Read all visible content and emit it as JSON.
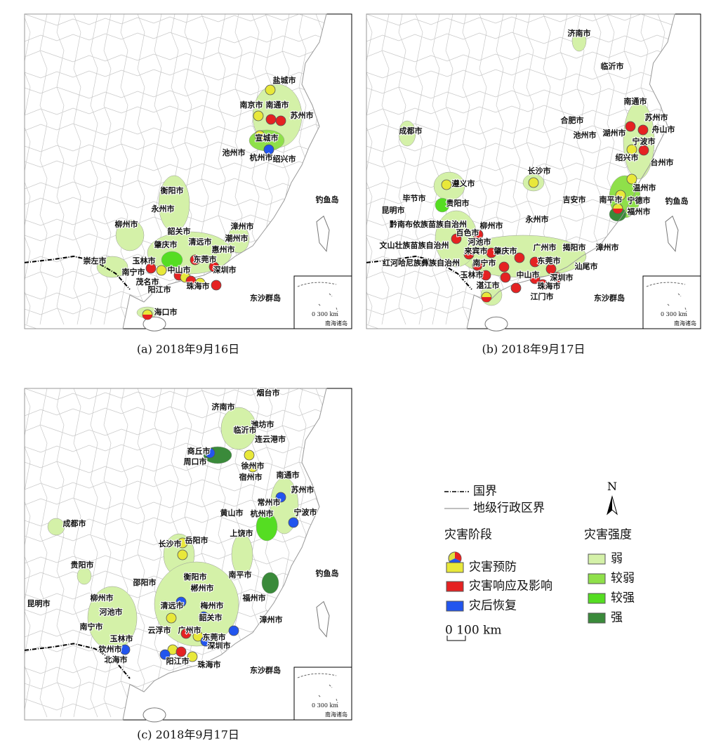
{
  "panels": [
    {
      "caption": "(a) 2018年9月16日",
      "scale": "0 300 km",
      "inset_label": "南海诸岛",
      "labels": [
        "盐城市",
        "南京市",
        "南通市",
        "苏州市",
        "宣城市",
        "池州市",
        "杭州市",
        "绍兴市",
        "衡阳市",
        "永州市",
        "柳州市",
        "韶关市",
        "肇庆市",
        "清远市",
        "漳州市",
        "潮州市",
        "惠州市",
        "东莞市",
        "崇左市",
        "玉林市",
        "南宁市",
        "中山市",
        "深圳市",
        "茂名市",
        "阳江市",
        "珠海市",
        "海口市",
        "钓鱼岛",
        "东沙群岛"
      ]
    },
    {
      "caption": "(b) 2018年9月17日",
      "scale": "0 300 km",
      "inset_label": "南海诸岛",
      "labels": [
        "济南市",
        "临沂市",
        "南通市",
        "苏州市",
        "舟山市",
        "合肥市",
        "湖州市",
        "池州市",
        "宁波市",
        "成都市",
        "绍兴市",
        "台州市",
        "长沙市",
        "遵义市",
        "温州市",
        "毕节市",
        "贵阳市",
        "吉安市",
        "南平市",
        "宁德市",
        "福州市",
        "钓鱼岛",
        "昆明市",
        "黔南布依族苗族自治州",
        "百色市",
        "柳州市",
        "永州市",
        "河池市",
        "文山壮族苗族自治州",
        "来宾市",
        "肇庆市",
        "广州市",
        "揭阳市",
        "漳州市",
        "红河哈尼族彝族自治州",
        "南宁市",
        "东莞市",
        "汕尾市",
        "玉林市",
        "中山市",
        "深圳市",
        "湛江市",
        "珠海市",
        "江门市",
        "东沙群岛"
      ]
    },
    {
      "caption": "(c) 2018年9月17日",
      "scale": "0 300 km",
      "inset_label": "南海诸岛",
      "labels": [
        "烟台市",
        "济南市",
        "潍坊市",
        "临沂市",
        "连云港市",
        "商丘市",
        "周口市",
        "徐州市",
        "宿州市",
        "南通市",
        "苏州市",
        "常州市",
        "宁波市",
        "成都市",
        "黄山市",
        "杭州市",
        "长沙市",
        "岳阳市",
        "上饶市",
        "钓鱼岛",
        "贵阳市",
        "衡阳市",
        "郴州市",
        "南平市",
        "邵阳市",
        "福州市",
        "柳州市",
        "昆明市",
        "河池市",
        "清远市",
        "梅州市",
        "韶关市",
        "南宁市",
        "云浮市",
        "广州市",
        "漳州市",
        "玉林市",
        "东莞市",
        "深圳市",
        "钦州市",
        "北海市",
        "阳江市",
        "珠海市",
        "东沙群岛"
      ]
    }
  ],
  "legend": {
    "national_border": "国界",
    "prefecture_border": "地级行政区界",
    "stage_title": "灾害阶段",
    "stages": [
      "灾害预防",
      "灾害响应及影响",
      "灾后恢复"
    ],
    "scale": "0 100 km",
    "north": "N",
    "intensity_title": "灾害强度",
    "intensities": [
      "弱",
      "较弱",
      "较强",
      "强"
    ]
  }
}
